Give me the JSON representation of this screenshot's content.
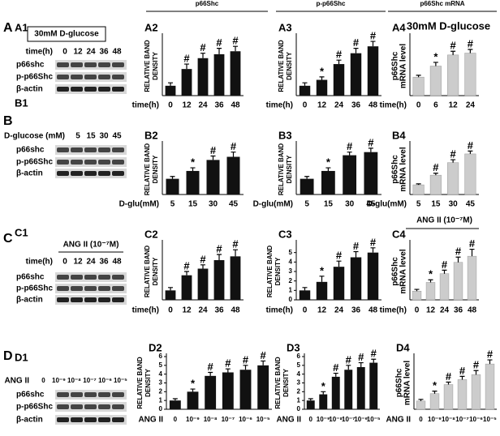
{
  "row_letters": [
    "A",
    "B",
    "C",
    "D"
  ],
  "headers": [
    "p66Shc",
    "p-p66Shc",
    "p66Shc mRNA"
  ],
  "blots": [
    {
      "panel": "A1",
      "condition": "30mM D-glucose",
      "axis_label": "time(h)",
      "lanes": [
        "0",
        "12",
        "24",
        "36",
        "48"
      ],
      "rows": [
        "p66shc",
        "p-p66Shc",
        "β-actin"
      ]
    },
    {
      "panel": "B1",
      "axis_label": "D-glucose (mM)",
      "lanes": [
        "5",
        "15",
        "30",
        "45"
      ],
      "rows": [
        "p66shc",
        "p-p66Shc",
        "β-actin"
      ]
    },
    {
      "panel": "C1",
      "condition": "ANG II (10⁻⁷M)",
      "axis_label": "time(h)",
      "lanes": [
        "0",
        "12",
        "24",
        "36",
        "48"
      ],
      "rows": [
        "p66shc",
        "p-p66Shc",
        "β-actin"
      ]
    },
    {
      "panel": "D1",
      "axis_label": "ANG II",
      "lanes": [
        "0",
        "10⁻⁹",
        "10⁻⁸",
        "10⁻⁷",
        "10⁻⁶",
        "10⁻⁵"
      ],
      "rows": [
        "p66shc",
        "p-p66Shc",
        "β-actin"
      ]
    }
  ],
  "chart_data": [
    {
      "type": "bar",
      "panel": "A2",
      "ylabel": [
        "RELATIVE BAND",
        "DENSITY"
      ],
      "xlabel": "time(h)",
      "categories": [
        "0",
        "12",
        "24",
        "36",
        "48"
      ],
      "values": [
        1.0,
        2.7,
        3.8,
        4.2,
        4.5
      ],
      "errors": [
        0.3,
        0.5,
        0.5,
        0.6,
        0.5
      ],
      "significance": [
        null,
        "#",
        "#",
        "#",
        "#"
      ],
      "color": "#111111",
      "ylim": [
        0,
        6
      ]
    },
    {
      "type": "bar",
      "panel": "A3",
      "ylabel": [
        "RELATIVE BAND",
        "DENSITY"
      ],
      "xlabel": "time(h)",
      "categories": [
        "0",
        "12",
        "24",
        "36",
        "48"
      ],
      "values": [
        1.0,
        1.6,
        3.2,
        4.3,
        5.0
      ],
      "errors": [
        0.3,
        0.3,
        0.4,
        0.5,
        0.5
      ],
      "significance": [
        null,
        "*",
        "#",
        "#",
        "#"
      ],
      "color": "#111111",
      "ylim": [
        0,
        6
      ]
    },
    {
      "type": "bar",
      "panel": "A4",
      "note": "30mM D-glucose",
      "ylabel": [
        "p66Shc",
        "mRNA level"
      ],
      "xlabel": "time(h)",
      "categories": [
        "0",
        "6",
        "12",
        "24"
      ],
      "values": [
        1.0,
        1.6,
        2.2,
        2.3
      ],
      "errors": [
        0.1,
        0.2,
        0.2,
        0.2
      ],
      "significance": [
        null,
        "*",
        "#",
        "#"
      ],
      "color": "#cccccc",
      "ylim": [
        0,
        3.2
      ]
    },
    {
      "type": "bar",
      "panel": "B2",
      "ylabel": [
        "RELATIVE BAND",
        "DENSITY"
      ],
      "xlabel": "D-glu(mM)",
      "categories": [
        "5",
        "15",
        "30",
        "45"
      ],
      "values": [
        1.0,
        1.5,
        2.2,
        2.4
      ],
      "errors": [
        0.15,
        0.2,
        0.25,
        0.3
      ],
      "significance": [
        null,
        "*",
        "#",
        "#"
      ],
      "color": "#111111",
      "ylim": [
        0,
        3.2
      ]
    },
    {
      "type": "bar",
      "panel": "B3",
      "ylabel": [
        "RELATIVE BAND",
        "DENSITY"
      ],
      "xlabel": "D-glu(mM)",
      "categories": [
        "5",
        "15",
        "30",
        "45"
      ],
      "values": [
        1.0,
        1.5,
        2.5,
        2.7
      ],
      "errors": [
        0.15,
        0.2,
        0.2,
        0.25
      ],
      "significance": [
        null,
        "*",
        "#",
        "#"
      ],
      "color": "#111111",
      "ylim": [
        0,
        3.2
      ]
    },
    {
      "type": "bar",
      "panel": "B4",
      "ylabel": [
        "p66Shc",
        "mRNA level"
      ],
      "xlabel": "D-glu(mM)",
      "categories": [
        "5",
        "15",
        "30",
        "45"
      ],
      "values": [
        1.0,
        2.0,
        3.3,
        4.2
      ],
      "errors": [
        0.1,
        0.2,
        0.3,
        0.3
      ],
      "significance": [
        null,
        "#",
        "#",
        "#"
      ],
      "color": "#cccccc",
      "ylim": [
        0,
        5.2
      ]
    },
    {
      "type": "bar",
      "panel": "C2",
      "ylabel": [
        "RELATIVE BAND",
        "DENSITY"
      ],
      "xlabel": "time(h)",
      "categories": [
        "0",
        "12",
        "24",
        "36",
        "48"
      ],
      "values": [
        1.0,
        2.6,
        3.3,
        4.2,
        4.6
      ],
      "errors": [
        0.3,
        0.4,
        0.4,
        0.6,
        0.7
      ],
      "significance": [
        null,
        "#",
        "#",
        "#",
        "#"
      ],
      "color": "#111111",
      "ylim": [
        0,
        6
      ]
    },
    {
      "type": "bar",
      "panel": "C3",
      "ylabel": [
        "RELATIVE BAND",
        "DENSITY"
      ],
      "xlabel": "time(h)",
      "categories": [
        "0",
        "12",
        "24",
        "36",
        "48"
      ],
      "values": [
        1.0,
        1.9,
        3.5,
        4.5,
        5.0
      ],
      "errors": [
        0.3,
        0.6,
        0.6,
        0.6,
        0.5
      ],
      "significance": [
        null,
        "*",
        "#",
        "#",
        "#"
      ],
      "color": "#111111",
      "ylim": [
        0,
        6
      ],
      "yticks": [
        0,
        1,
        2,
        3,
        4,
        5
      ]
    },
    {
      "type": "bar",
      "panel": "C4",
      "note": "ANG II (10⁻⁷M)",
      "ylabel": [
        "p66Shc",
        "mRNA level"
      ],
      "xlabel": "time(h)",
      "categories": [
        "0",
        "12",
        "24",
        "36",
        "48"
      ],
      "values": [
        1.0,
        2.0,
        3.0,
        4.3,
        5.0
      ],
      "errors": [
        0.2,
        0.3,
        0.4,
        0.6,
        0.8
      ],
      "significance": [
        null,
        "*",
        "#",
        "#",
        "#"
      ],
      "color": "#cccccc",
      "ylim": [
        0,
        6.5
      ]
    },
    {
      "type": "bar",
      "panel": "D2",
      "ylabel": [
        "RELATIVE BAND",
        "DENSITY"
      ],
      "xlabel": "ANG II",
      "categories": [
        "0",
        "10⁻⁹",
        "10⁻⁸",
        "10⁻⁷",
        "10⁻⁶",
        "10⁻⁵"
      ],
      "values": [
        1.0,
        2.0,
        3.8,
        4.2,
        4.5,
        5.0
      ],
      "errors": [
        0.2,
        0.3,
        0.4,
        0.4,
        0.5,
        0.5
      ],
      "significance": [
        null,
        "*",
        "#",
        "#",
        "#",
        "#"
      ],
      "color": "#111111",
      "ylim": [
        0,
        6
      ],
      "yticks": [
        0,
        1,
        2,
        3,
        4,
        5,
        6
      ]
    },
    {
      "type": "bar",
      "panel": "D3",
      "ylabel": [
        "RELATIVE BAND",
        "DENSITY"
      ],
      "xlabel": "ANG II",
      "categories": [
        "0",
        "10⁻⁹",
        "10⁻⁸",
        "10⁻⁷",
        "10⁻⁶",
        "10⁻⁵"
      ],
      "values": [
        1.0,
        1.7,
        3.7,
        4.5,
        4.8,
        5.3
      ],
      "errors": [
        0.2,
        0.3,
        0.4,
        0.5,
        0.5,
        0.4
      ],
      "significance": [
        null,
        "*",
        "#",
        "#",
        "#",
        "#"
      ],
      "color": "#111111",
      "ylim": [
        0,
        6
      ],
      "yticks": [
        0,
        1,
        2,
        3,
        4,
        5,
        6
      ]
    },
    {
      "type": "bar",
      "panel": "D4",
      "ylabel": [
        "p66Shc",
        "mRNA level"
      ],
      "xlabel": "ANG II",
      "categories": [
        "0",
        "10⁻⁹",
        "10⁻⁸",
        "10⁻⁷",
        "10⁻⁶",
        "10⁻⁵"
      ],
      "values": [
        1.0,
        1.9,
        3.0,
        3.6,
        4.2,
        5.5
      ],
      "errors": [
        0.2,
        0.3,
        0.3,
        0.4,
        0.5,
        0.5
      ],
      "significance": [
        null,
        "*",
        "#",
        "#",
        "#",
        "#"
      ],
      "color": "#cccccc",
      "ylim": [
        0,
        6.4
      ]
    }
  ]
}
